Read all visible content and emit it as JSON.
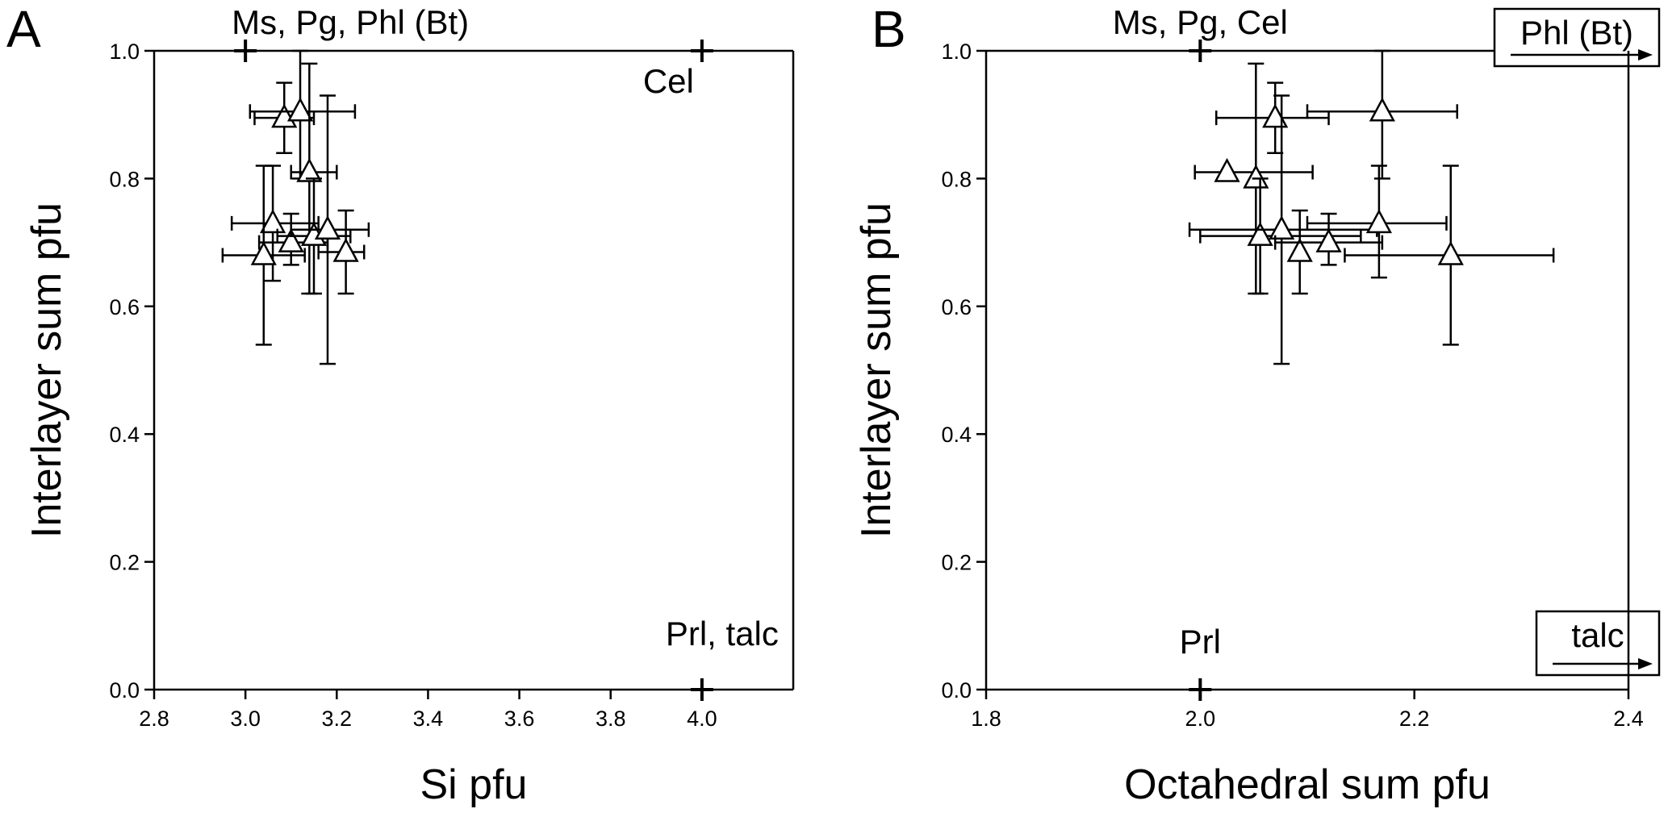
{
  "chart_data": [
    {
      "type": "scatter",
      "panel_label": "A",
      "xlabel": "Si pfu",
      "ylabel": "Interlayer sum pfu",
      "xlim": [
        2.8,
        4.2
      ],
      "ylim": [
        0,
        1
      ],
      "xticks": [
        "2.8",
        "3.0",
        "3.2",
        "3.4",
        "3.6",
        "3.8",
        "4.0"
      ],
      "yticks": [
        "0.0",
        "0.2",
        "0.4",
        "0.6",
        "0.8",
        "1.0"
      ],
      "annotations": [
        {
          "text": "Ms, Pg, Phl (Bt)",
          "x": 3.0,
          "y": 1.0
        },
        {
          "text": "Cel",
          "x": 4.0,
          "y": 1.0
        },
        {
          "text": "Prl, talc",
          "x": 4.0,
          "y": 0.0
        }
      ],
      "points": [
        {
          "x": 3.085,
          "y": 0.895,
          "xerr": [
            3.02,
            3.15
          ],
          "yerr": [
            0.84,
            0.95
          ]
        },
        {
          "x": 3.12,
          "y": 0.905,
          "xerr": [
            3.01,
            3.24
          ],
          "yerr": [
            0.8,
            1.0
          ]
        },
        {
          "x": 3.14,
          "y": 0.81,
          "xerr": [
            3.1,
            3.2
          ],
          "yerr": [
            0.62,
            0.98
          ]
        },
        {
          "x": 3.06,
          "y": 0.73,
          "xerr": [
            2.97,
            3.16
          ],
          "yerr": [
            0.64,
            0.82
          ]
        },
        {
          "x": 3.04,
          "y": 0.68,
          "xerr": [
            2.95,
            3.13
          ],
          "yerr": [
            0.54,
            0.82
          ]
        },
        {
          "x": 3.1,
          "y": 0.7,
          "xerr": [
            3.03,
            3.18
          ],
          "yerr": [
            0.665,
            0.745
          ]
        },
        {
          "x": 3.15,
          "y": 0.71,
          "xerr": [
            3.07,
            3.23
          ],
          "yerr": [
            0.62,
            0.8
          ]
        },
        {
          "x": 3.18,
          "y": 0.72,
          "xerr": [
            3.1,
            3.27
          ],
          "yerr": [
            0.51,
            0.93
          ]
        },
        {
          "x": 3.22,
          "y": 0.685,
          "xerr": [
            3.16,
            3.26
          ],
          "yerr": [
            0.62,
            0.75
          ]
        }
      ]
    },
    {
      "type": "scatter",
      "panel_label": "B",
      "xlabel": "Octahedral sum pfu",
      "ylabel": "Interlayer sum pfu",
      "xlim": [
        1.8,
        2.4
      ],
      "ylim": [
        0,
        1
      ],
      "xticks": [
        "1.8",
        "2.0",
        "2.2",
        "2.4"
      ],
      "yticks": [
        "0.0",
        "0.2",
        "0.4",
        "0.6",
        "0.8",
        "1.0"
      ],
      "annotations": [
        {
          "text": "Ms, Pg, Cel",
          "x": 2.0,
          "y": 1.0
        },
        {
          "text": "Prl",
          "x": 2.0,
          "y": 0.0
        }
      ],
      "boxed_labels": [
        "Phl (Bt)",
        "talc"
      ],
      "points": [
        {
          "x": 2.025,
          "y": 0.81,
          "xerr": [
            1.995,
            2.105
          ],
          "yerr": null
        },
        {
          "x": 2.052,
          "y": 0.8,
          "xerr": null,
          "yerr": [
            0.62,
            0.98
          ]
        },
        {
          "x": 2.07,
          "y": 0.895,
          "xerr": [
            2.015,
            2.12
          ],
          "yerr": [
            0.84,
            0.95
          ]
        },
        {
          "x": 2.17,
          "y": 0.905,
          "xerr": [
            2.1,
            2.24
          ],
          "yerr": [
            0.8,
            1.0
          ]
        },
        {
          "x": 2.056,
          "y": 0.71,
          "xerr": [
            2.0,
            2.15
          ],
          "yerr": [
            0.62,
            0.8
          ]
        },
        {
          "x": 2.076,
          "y": 0.72,
          "xerr": [
            1.99,
            2.165
          ],
          "yerr": [
            0.51,
            0.93
          ]
        },
        {
          "x": 2.093,
          "y": 0.685,
          "xerr": null,
          "yerr": [
            0.62,
            0.75
          ]
        },
        {
          "x": 2.12,
          "y": 0.7,
          "xerr": [
            2.07,
            2.17
          ],
          "yerr": [
            0.665,
            0.745
          ]
        },
        {
          "x": 2.167,
          "y": 0.73,
          "xerr": [
            2.1,
            2.23
          ],
          "yerr": [
            0.645,
            0.82
          ]
        },
        {
          "x": 2.234,
          "y": 0.68,
          "xerr": [
            2.135,
            2.33
          ],
          "yerr": [
            0.54,
            0.82
          ]
        }
      ]
    }
  ]
}
